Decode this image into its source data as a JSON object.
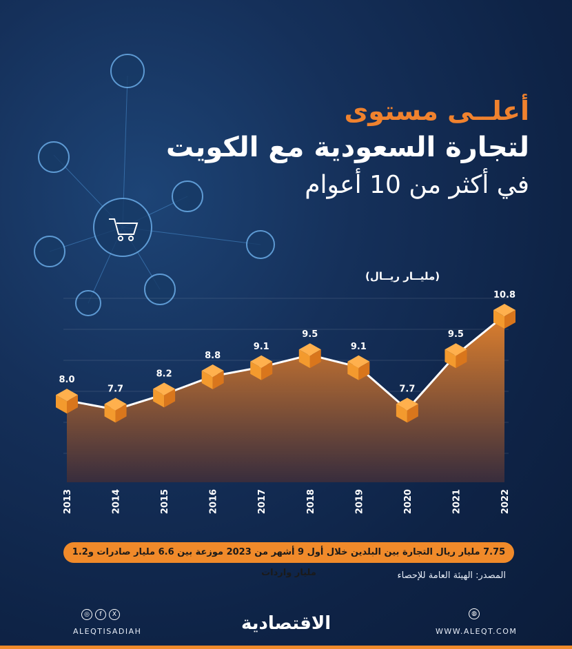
{
  "title": {
    "line1": "أعلــى مستوى",
    "line2": "لتجارة السعودية مع الكويت",
    "line3": "في أكثر من 10 أعوام"
  },
  "unit_label": "(مليــار ريــال)",
  "chart_data": {
    "type": "area",
    "x": [
      "2013",
      "2014",
      "2015",
      "2016",
      "2017",
      "2018",
      "2019",
      "2020",
      "2021",
      "2022"
    ],
    "values": [
      8.0,
      7.7,
      8.2,
      8.8,
      9.1,
      9.5,
      9.1,
      7.7,
      9.5,
      10.8
    ],
    "data_labels": [
      "8.0",
      "7.7",
      "8.2",
      "8.8",
      "9.1",
      "9.5",
      "9.1",
      "7.7",
      "9.5",
      "10.8"
    ],
    "colors": {
      "area_top": "#e8842c",
      "area_bottom": "#3a2d3c",
      "line": "#ffffff",
      "marker": "#f39a2e"
    }
  },
  "note": "7.75 مليار ريال التجارة بين البلدين خلال أول 9 أشهر من 2023 موزعة بين 6.6 مليار صادرات و1.2 مليار واردات",
  "source": "المصدر: الهيئة العامة للإحصاء",
  "footer": {
    "social_icons": [
      "instagram-icon",
      "facebook-icon",
      "x-icon"
    ],
    "social_glyphs": [
      "◎",
      "f",
      "X"
    ],
    "handle": "ALEQTISADIAH",
    "logo": "الاقتصادية",
    "globe_glyph": "◍",
    "website": "WWW.ALEQT.COM"
  }
}
